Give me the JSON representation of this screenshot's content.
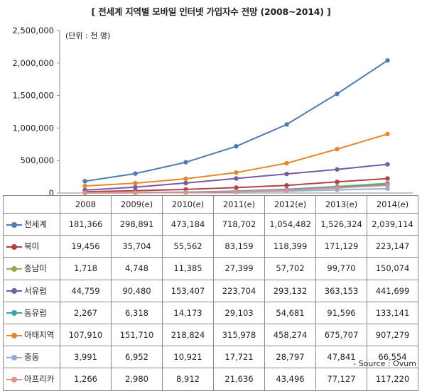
{
  "title": "[ 전세계 지역별 모바일 인터넷 가입자수 전망 (2008~2014) ]",
  "unit_label": "(단위 : 천 명)",
  "source": "- Source : Ovum",
  "chart_data": {
    "type": "line",
    "title": "[ 전세계 지역별 모바일 인터넷 가입자수 전망 (2008~2014) ]",
    "categories": [
      "2008",
      "2009(e)",
      "2010(e)",
      "2011(e)",
      "2012(e)",
      "2013(e)",
      "2014(e)"
    ],
    "y_ticks": [
      "0",
      "500,000",
      "1,000,000",
      "1,500,000",
      "2,000,000",
      "2,500,000"
    ],
    "ylim": [
      0,
      2500000
    ],
    "grid": false,
    "legend": "table-below",
    "series": [
      {
        "name": "전세계",
        "color": "#4f7ab3",
        "values": [
          181366,
          298891,
          473184,
          718702,
          1054482,
          1526324,
          2039114
        ],
        "labels": [
          "181,366",
          "298,891",
          "473,184",
          "718,702",
          "1,054,482",
          "1,526,324",
          "2,039,114"
        ]
      },
      {
        "name": "북미",
        "color": "#b5404a",
        "values": [
          19456,
          35704,
          55562,
          83159,
          118399,
          171129,
          223147
        ],
        "labels": [
          "19,456",
          "35,704",
          "55,562",
          "83,159",
          "118,399",
          "171,129",
          "223,147"
        ]
      },
      {
        "name": "중남미",
        "color": "#8fae4b",
        "values": [
          1718,
          4748,
          11385,
          27399,
          57702,
          99770,
          150074
        ],
        "labels": [
          "1,718",
          "4,748",
          "11,385",
          "27,399",
          "57,702",
          "99,770",
          "150,074"
        ]
      },
      {
        "name": "서유럽",
        "color": "#7a5aa0",
        "values": [
          44759,
          90480,
          153407,
          223704,
          293132,
          363153,
          441699
        ],
        "labels": [
          "44,759",
          "90,480",
          "153,407",
          "223,704",
          "293,132",
          "363,153",
          "441,699"
        ]
      },
      {
        "name": "동유럽",
        "color": "#3fa2b3",
        "values": [
          2267,
          6318,
          14173,
          29103,
          54681,
          91596,
          133141
        ],
        "labels": [
          "2,267",
          "6,318",
          "14,173",
          "29,103",
          "54,681",
          "91,596",
          "133,141"
        ]
      },
      {
        "name": "아태지역",
        "color": "#e8862e",
        "values": [
          107910,
          151710,
          218824,
          315978,
          458274,
          675707,
          907279
        ],
        "labels": [
          "107,910",
          "151,710",
          "218,824",
          "315,978",
          "458,274",
          "675,707",
          "907,279"
        ]
      },
      {
        "name": "중동",
        "color": "#96acd8",
        "values": [
          3991,
          6952,
          10921,
          17721,
          28797,
          47841,
          66554
        ],
        "labels": [
          "3,991",
          "6,952",
          "10,921",
          "17,721",
          "28,797",
          "47,841",
          "66,554"
        ]
      },
      {
        "name": "아프리카",
        "color": "#d8928f",
        "values": [
          1266,
          2980,
          8912,
          21636,
          43496,
          77127,
          117220
        ],
        "labels": [
          "1,266",
          "2,980",
          "8,912",
          "21,636",
          "43,496",
          "77,127",
          "117,220"
        ]
      }
    ]
  }
}
